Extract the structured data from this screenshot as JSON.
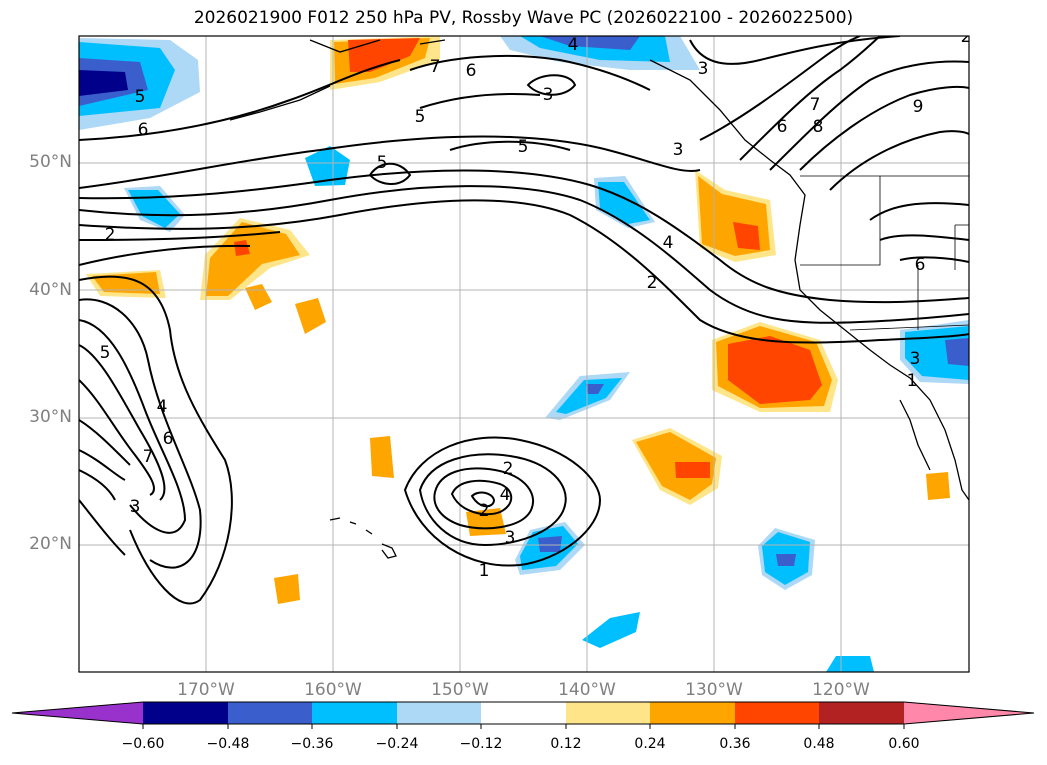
{
  "title": "2026021900 F012 250 hPa PV, Rossby Wave PC (2026022100 - 2026022500)",
  "map": {
    "lon_range": [
      "180°",
      "110°W"
    ],
    "lat_range": [
      "10°N",
      "60°N"
    ],
    "latitudes": [
      {
        "label": "50°N",
        "value": 50
      },
      {
        "label": "40°N",
        "value": 40
      },
      {
        "label": "30°N",
        "value": 30
      },
      {
        "label": "20°N",
        "value": 20
      }
    ],
    "longitudes": [
      {
        "label": "170°W",
        "value": -170
      },
      {
        "label": "160°W",
        "value": -160
      },
      {
        "label": "150°W",
        "value": -150
      },
      {
        "label": "140°W",
        "value": -140
      },
      {
        "label": "130°W",
        "value": -130
      },
      {
        "label": "120°W",
        "value": -120
      }
    ],
    "contour_labels": [
      "5",
      "6",
      "7",
      "6",
      "5",
      "3",
      "5",
      "5",
      "3",
      "4",
      "3",
      "7",
      "6",
      "8",
      "9",
      "6",
      "3",
      "1",
      "4",
      "2",
      "5",
      "4",
      "6",
      "7",
      "3",
      "2",
      "2",
      "4",
      "2",
      "3",
      "1",
      "2"
    ]
  },
  "colorbar": {
    "colors": [
      "#9932cc",
      "#00008b",
      "#3a5fcd",
      "#00bfff",
      "#add8f6",
      "#ffffff",
      "#ffe58a",
      "#ffa500",
      "#ff4500",
      "#b22222",
      "#ff88aa"
    ],
    "tick_labels": [
      "−0.60",
      "−0.48",
      "−0.36",
      "−0.24",
      "−0.12",
      "0.12",
      "0.24",
      "0.36",
      "0.48",
      "0.60"
    ]
  }
}
